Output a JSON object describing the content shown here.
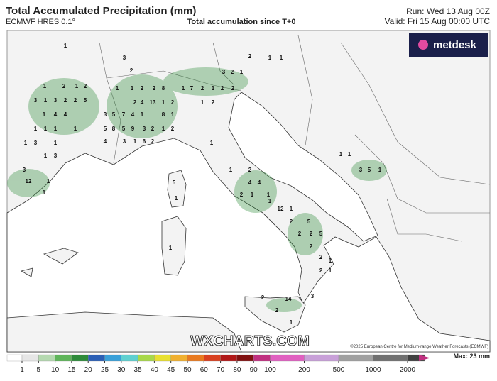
{
  "header": {
    "title": "Total Accumulated Precipitation (mm)",
    "model": "ECMWF HRES 0.1°",
    "subtitle": "Total accumulation since T+0",
    "run": "Run: Wed 13 Aug 00Z",
    "valid": "Valid: Fri 15 Aug 00:00 UTC"
  },
  "logo": "metdesk",
  "watermark": "WXCHARTS.COM",
  "copyright": "©2025 European Centre for Medium-range Weather Forecasts (ECMWF)",
  "map_labels": [
    1,
    1,
    2,
    1,
    2,
    3,
    1,
    3,
    2,
    2,
    5,
    1,
    4,
    4,
    1,
    1,
    1,
    1,
    1,
    3,
    1,
    1,
    3,
    3,
    12,
    1,
    1,
    3,
    2,
    1,
    1,
    2,
    2,
    8,
    1,
    7,
    2,
    1,
    2,
    2,
    3,
    2,
    1,
    2,
    1,
    1,
    2,
    4,
    13,
    1,
    2,
    1,
    2,
    3,
    5,
    7,
    4,
    1,
    8,
    1,
    5,
    8,
    5,
    9,
    3,
    2,
    1,
    2,
    4,
    3,
    1,
    6,
    2,
    1,
    5,
    1,
    1,
    1,
    2,
    4,
    4,
    2,
    1,
    1,
    1,
    12,
    1,
    2,
    5,
    2,
    2,
    5,
    2,
    2,
    2,
    1,
    1,
    3,
    2,
    14,
    2,
    1,
    1,
    1,
    3,
    5,
    1
  ],
  "colorbar": {
    "ticks": [
      1,
      5,
      10,
      15,
      20,
      25,
      30,
      35,
      40,
      45,
      50,
      60,
      70,
      80,
      90,
      100,
      200,
      500,
      1000,
      2000
    ],
    "colors": [
      "#ffffff",
      "#e6e6e6",
      "#b5d9b0",
      "#5fb55a",
      "#2e8b3a",
      "#2b5fb5",
      "#3aa0d8",
      "#5fd0d0",
      "#a8d84a",
      "#e8e030",
      "#f0b030",
      "#e87a20",
      "#d84020",
      "#b01818",
      "#801010",
      "#c03080",
      "#e060c0",
      "#c8a0d8",
      "#a0a0a0",
      "#707070",
      "#404040"
    ],
    "max_label": "Max: 23 mm"
  }
}
